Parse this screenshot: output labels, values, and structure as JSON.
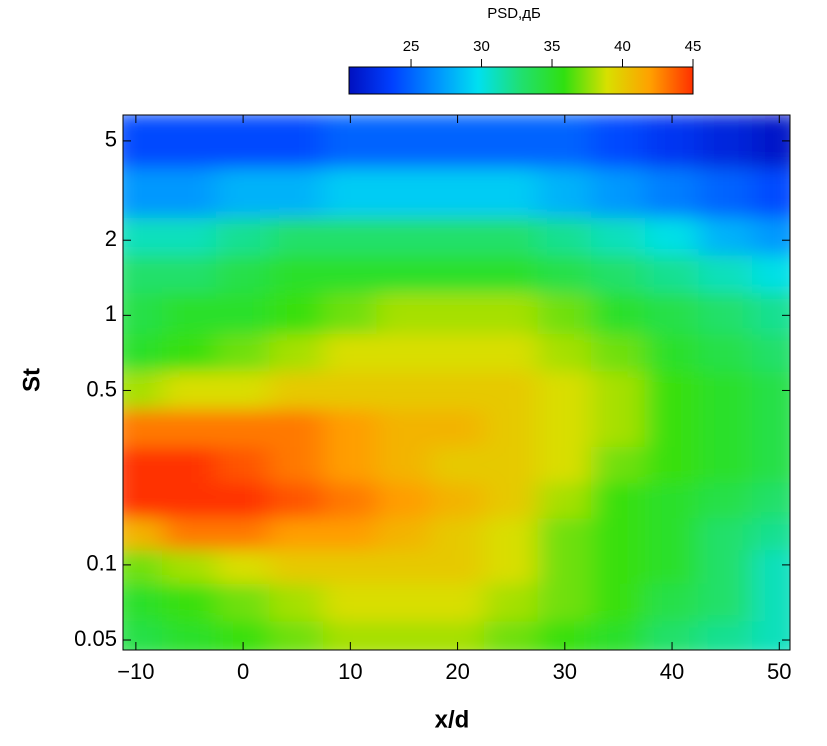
{
  "chart_data": {
    "type": "heatmap",
    "xlabel": "x/d",
    "ylabel": "St",
    "colorbar_title": "PSD,дБ",
    "x": [
      -10,
      -5,
      0,
      5,
      10,
      15,
      20,
      25,
      30,
      35,
      40,
      45,
      50
    ],
    "y": [
      5,
      3,
      2,
      1.5,
      1,
      0.7,
      0.5,
      0.35,
      0.25,
      0.18,
      0.13,
      0.1,
      0.07,
      0.05
    ],
    "z": [
      [
        24,
        24,
        24,
        24,
        25,
        25,
        25,
        25,
        25,
        24,
        23,
        22,
        21
      ],
      [
        27,
        27,
        28,
        28,
        29,
        29,
        29,
        29,
        28,
        27,
        26,
        25,
        24
      ],
      [
        31,
        31,
        32,
        33,
        33,
        33,
        33,
        33,
        32,
        31,
        30,
        28,
        27
      ],
      [
        33,
        33,
        34,
        35,
        35,
        35,
        35,
        35,
        34,
        33,
        32,
        31,
        30
      ],
      [
        34,
        35,
        35,
        36,
        37,
        38,
        38,
        38,
        37,
        35,
        34,
        33,
        32
      ],
      [
        35,
        36,
        37,
        38,
        39,
        39,
        39,
        39,
        38,
        37,
        35,
        34,
        33
      ],
      [
        38,
        39,
        39,
        40,
        40,
        40,
        40,
        40,
        39,
        38,
        36,
        35,
        34
      ],
      [
        43,
        43,
        43,
        43,
        42,
        41,
        41,
        40,
        39,
        38,
        36,
        35,
        34
      ],
      [
        45,
        45,
        44,
        43,
        42,
        41,
        40,
        40,
        39,
        37,
        36,
        35,
        34
      ],
      [
        45,
        45,
        45,
        44,
        43,
        42,
        41,
        40,
        38,
        36,
        35,
        34,
        33
      ],
      [
        41,
        43,
        43,
        42,
        42,
        41,
        40,
        39,
        37,
        36,
        35,
        33,
        32
      ],
      [
        37,
        38,
        39,
        40,
        40,
        40,
        40,
        39,
        37,
        36,
        35,
        33,
        31
      ],
      [
        35,
        36,
        37,
        38,
        39,
        39,
        39,
        38,
        37,
        36,
        34,
        33,
        31
      ],
      [
        34,
        35,
        36,
        37,
        38,
        38,
        38,
        37,
        36,
        35,
        33,
        32,
        31
      ]
    ],
    "xlim": [
      -11.2,
      51
    ],
    "ylim": [
      0.0456,
      6.35
    ],
    "ylog": true,
    "xticks": [
      {
        "value": -10,
        "label": "−10"
      },
      0,
      10,
      20,
      30,
      40,
      50
    ],
    "yticks": [
      5,
      2,
      1,
      0.5,
      0.1,
      0.05
    ],
    "clim": [
      20.6,
      45
    ],
    "cticks": [
      25,
      30,
      35,
      40,
      45
    ],
    "colorscale": [
      "#0010c0",
      "#0040ff",
      "#0090ff",
      "#00e0f0",
      "#20e070",
      "#30e010",
      "#d8e000",
      "#ffa000",
      "#ff3000"
    ]
  }
}
